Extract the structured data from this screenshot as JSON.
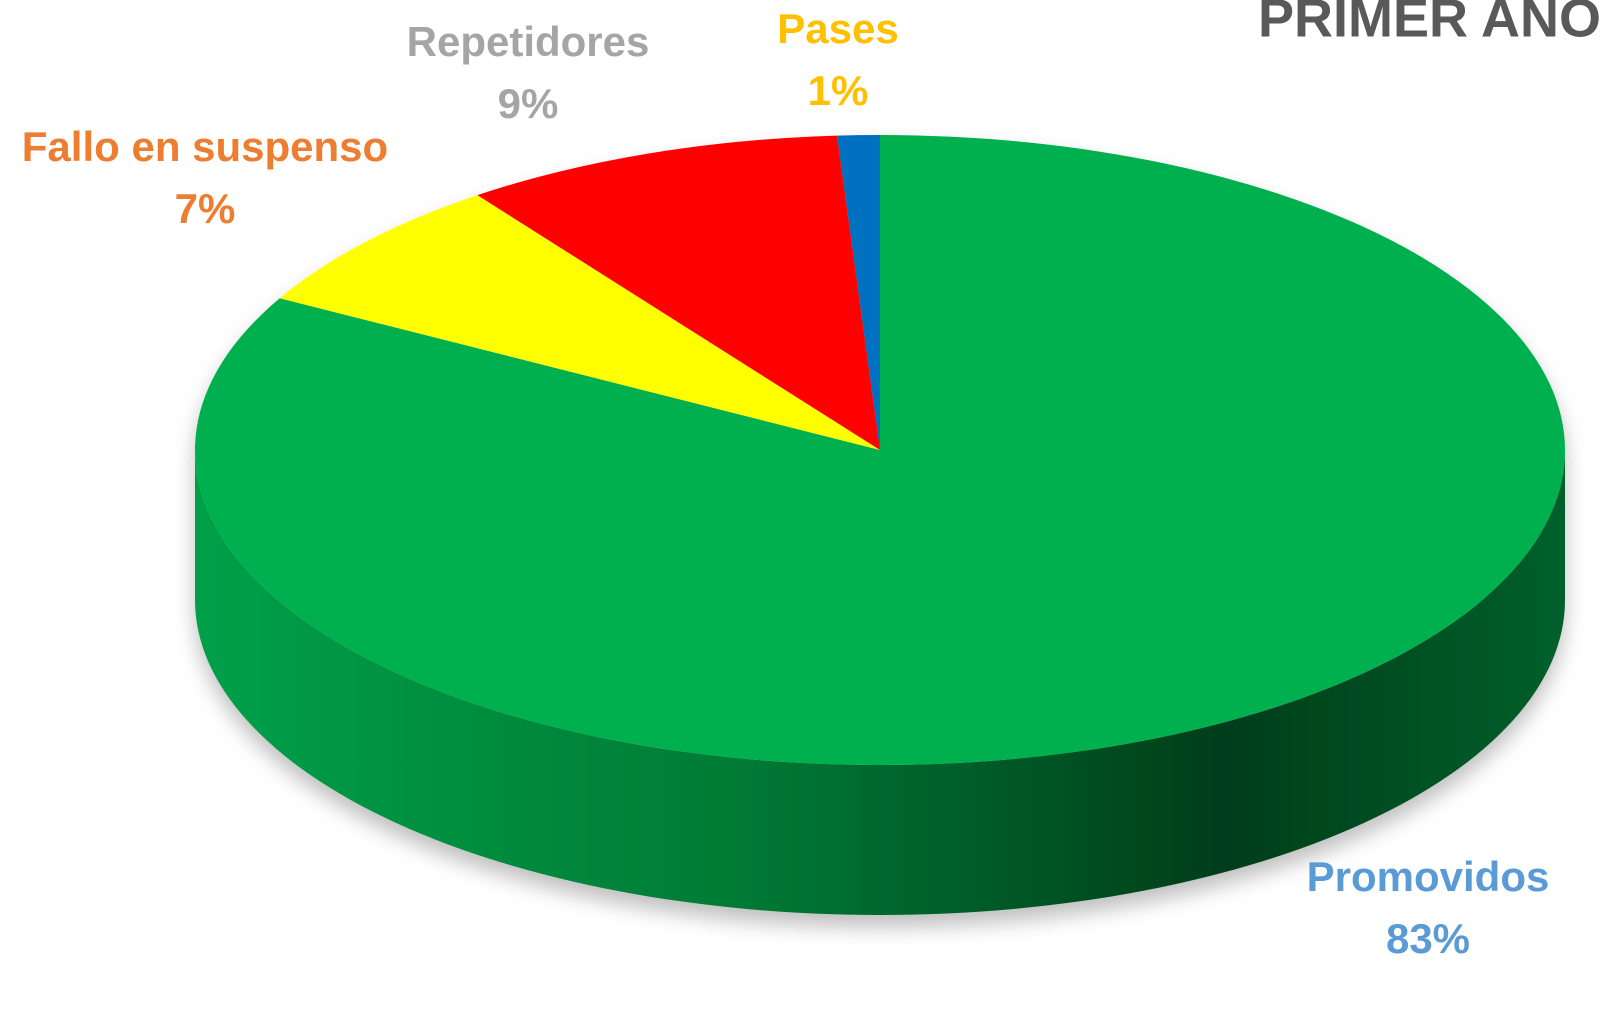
{
  "chart_data": {
    "type": "pie3d",
    "title": "PRIMER AÑO",
    "categories": [
      "Promovidos",
      "Fallo en suspenso",
      "Repetidores",
      "Pases"
    ],
    "values": [
      83,
      7,
      9,
      1
    ],
    "value_labels": [
      "83%",
      "7%",
      "9%",
      "1%"
    ],
    "colors": [
      "#00b050",
      "#ffff00",
      "#ff0000",
      "#0070c0"
    ],
    "label_colors": [
      "#5b9bd5",
      "#ed7d31",
      "#a5a5a5",
      "#ffc000"
    ]
  }
}
